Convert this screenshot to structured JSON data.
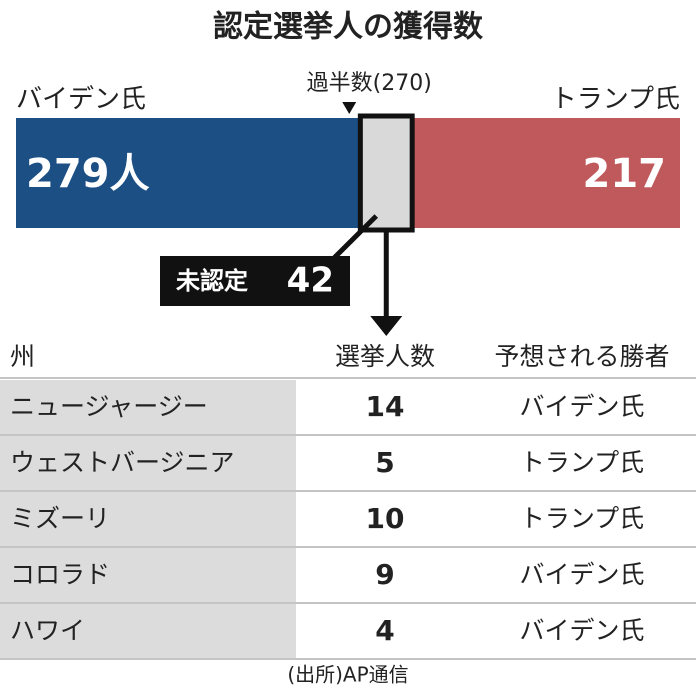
{
  "chart_data": {
    "type": "stacked-bar",
    "title": "認定選挙人の獲得数",
    "series": [
      {
        "name": "バイデン氏",
        "color": "#1c4f84",
        "values": [
          279
        ],
        "value_labels": [
          "279人"
        ]
      },
      {
        "name": "未認定",
        "color": "#d9d9d9",
        "values": [
          42
        ]
      },
      {
        "name": "トランプ氏",
        "color": "#c0595c",
        "values": [
          217
        ]
      }
    ],
    "xlim": [
      0,
      538
    ],
    "annotations": [
      {
        "value": 270,
        "label": "過半数(270)"
      }
    ]
  },
  "table": {
    "header": [
      "州",
      "選挙人数",
      "予想される勝者"
    ],
    "rows": [
      [
        "ニュージャージー",
        14,
        "バイデン氏"
      ],
      [
        "ウェストバージニア",
        5,
        "トランプ氏"
      ],
      [
        "ミズーリ",
        10,
        "トランプ氏"
      ],
      [
        "コロラド",
        9,
        "バイデン氏"
      ],
      [
        "ハワイ",
        4,
        "バイデン氏"
      ]
    ]
  },
  "source": "(出所)AP通信"
}
